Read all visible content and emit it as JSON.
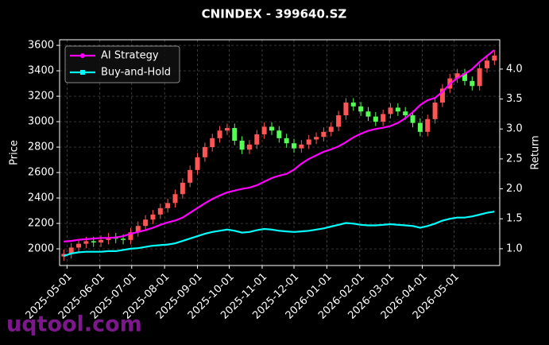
{
  "chart_data": {
    "type": "candlestick",
    "title": "CNINDEX - 399640.SZ",
    "ylabel": "Price",
    "y2label": "Return",
    "watermark": "uqtool.com",
    "grid": true,
    "legend": "upper left",
    "up_color": "#ff5555",
    "down_color": "#55ff55",
    "x": [
      "2025-04-28",
      "2025-05-05",
      "2025-05-12",
      "2025-05-19",
      "2025-05-26",
      "2025-06-02",
      "2025-06-09",
      "2025-06-16",
      "2025-06-23",
      "2025-06-30",
      "2025-07-07",
      "2025-07-14",
      "2025-07-21",
      "2025-07-28",
      "2025-08-04",
      "2025-08-11",
      "2025-08-18",
      "2025-08-25",
      "2025-09-01",
      "2025-09-08",
      "2025-09-15",
      "2025-09-22",
      "2025-09-29",
      "2025-10-06",
      "2025-10-13",
      "2025-10-20",
      "2025-10-27",
      "2025-11-03",
      "2025-11-10",
      "2025-11-17",
      "2025-11-24",
      "2025-12-01",
      "2025-12-08",
      "2025-12-15",
      "2025-12-22",
      "2025-12-29",
      "2026-01-05",
      "2026-01-12",
      "2026-01-19",
      "2026-01-26",
      "2026-02-02",
      "2026-02-09",
      "2026-02-16",
      "2026-02-23",
      "2026-03-02",
      "2026-03-09",
      "2026-03-16",
      "2026-03-23",
      "2026-03-30",
      "2026-04-06",
      "2026-04-13",
      "2026-04-20",
      "2026-04-27",
      "2026-05-04",
      "2026-05-11",
      "2026-05-18",
      "2026-05-25",
      "2026-06-01",
      "2026-06-08"
    ],
    "open": [
      1940,
      1960,
      2010,
      2040,
      2060,
      2050,
      2070,
      2090,
      2080,
      2070,
      2130,
      2180,
      2230,
      2270,
      2320,
      2360,
      2430,
      2520,
      2620,
      2720,
      2800,
      2870,
      2930,
      2950,
      2850,
      2780,
      2820,
      2900,
      2960,
      2930,
      2870,
      2830,
      2790,
      2820,
      2860,
      2880,
      2920,
      2960,
      3050,
      3150,
      3120,
      3080,
      3040,
      3000,
      3060,
      3110,
      3080,
      3050,
      2990,
      2920,
      3020,
      3150,
      3260,
      3340,
      3380,
      3320,
      3280,
      3420,
      3480
    ],
    "high": [
      1995,
      2045,
      2075,
      2095,
      2095,
      2105,
      2125,
      2125,
      2115,
      2165,
      2215,
      2265,
      2305,
      2355,
      2395,
      2465,
      2555,
      2655,
      2755,
      2835,
      2905,
      2965,
      2985,
      2985,
      2885,
      2855,
      2935,
      2995,
      2995,
      2965,
      2905,
      2865,
      2855,
      2895,
      2915,
      2955,
      2995,
      3085,
      3185,
      3185,
      3155,
      3115,
      3075,
      3095,
      3145,
      3145,
      3115,
      3085,
      3025,
      3055,
      3185,
      3295,
      3375,
      3415,
      3415,
      3355,
      3455,
      3515,
      3555
    ],
    "low": [
      1905,
      1925,
      1975,
      2005,
      2015,
      2015,
      2035,
      2045,
      2035,
      2035,
      2095,
      2145,
      2195,
      2235,
      2285,
      2325,
      2395,
      2485,
      2585,
      2685,
      2765,
      2835,
      2895,
      2815,
      2745,
      2745,
      2785,
      2865,
      2895,
      2835,
      2795,
      2755,
      2755,
      2785,
      2825,
      2845,
      2885,
      2925,
      3015,
      3085,
      3045,
      3005,
      2965,
      2965,
      3025,
      3045,
      3015,
      2955,
      2885,
      2885,
      2985,
      3115,
      3225,
      3305,
      3285,
      3245,
      3245,
      3385,
      3445
    ],
    "close": [
      1960,
      2010,
      2040,
      2060,
      2050,
      2070,
      2090,
      2080,
      2070,
      2130,
      2180,
      2230,
      2270,
      2320,
      2360,
      2430,
      2520,
      2620,
      2720,
      2800,
      2870,
      2930,
      2950,
      2850,
      2780,
      2820,
      2900,
      2960,
      2930,
      2870,
      2830,
      2790,
      2820,
      2860,
      2880,
      2920,
      2960,
      3050,
      3150,
      3120,
      3080,
      3040,
      3000,
      3060,
      3110,
      3080,
      3050,
      2990,
      2920,
      3020,
      3150,
      3260,
      3340,
      3380,
      3320,
      3280,
      3420,
      3480,
      3520
    ],
    "series": [
      {
        "name": "AI Strategy",
        "color": "#ff00ff",
        "axis": "y2",
        "marker": "circle",
        "values": [
          1.12,
          1.13,
          1.15,
          1.16,
          1.17,
          1.18,
          1.18,
          1.19,
          1.21,
          1.25,
          1.28,
          1.31,
          1.35,
          1.4,
          1.44,
          1.47,
          1.52,
          1.6,
          1.68,
          1.76,
          1.83,
          1.89,
          1.94,
          1.97,
          2.0,
          2.02,
          2.06,
          2.12,
          2.18,
          2.22,
          2.25,
          2.32,
          2.42,
          2.5,
          2.56,
          2.62,
          2.66,
          2.71,
          2.78,
          2.86,
          2.92,
          2.97,
          3.0,
          3.02,
          3.05,
          3.1,
          3.18,
          3.28,
          3.4,
          3.48,
          3.52,
          3.62,
          3.75,
          3.85,
          3.92,
          4.0,
          4.12,
          4.22,
          4.32
        ]
      },
      {
        "name": "Buy-and-Hold",
        "color": "#00ffff",
        "axis": "y2",
        "marker": "square",
        "values": [
          0.88,
          0.92,
          0.94,
          0.95,
          0.95,
          0.95,
          0.96,
          0.96,
          0.98,
          1.0,
          1.01,
          1.03,
          1.05,
          1.06,
          1.07,
          1.09,
          1.13,
          1.17,
          1.21,
          1.25,
          1.28,
          1.3,
          1.32,
          1.3,
          1.27,
          1.28,
          1.31,
          1.33,
          1.32,
          1.3,
          1.29,
          1.28,
          1.29,
          1.3,
          1.32,
          1.34,
          1.37,
          1.4,
          1.43,
          1.42,
          1.4,
          1.39,
          1.39,
          1.4,
          1.41,
          1.4,
          1.39,
          1.38,
          1.35,
          1.38,
          1.42,
          1.47,
          1.5,
          1.52,
          1.52,
          1.54,
          1.57,
          1.6,
          1.62
        ]
      }
    ],
    "xlim": [
      "2025-04-24",
      "2026-06-13"
    ],
    "xticks": [
      "2025-05-01",
      "2025-06-01",
      "2025-07-01",
      "2025-08-01",
      "2025-09-01",
      "2025-10-01",
      "2025-11-01",
      "2025-12-01",
      "2026-01-01",
      "2026-02-01",
      "2026-03-01",
      "2026-04-01",
      "2026-05-01"
    ],
    "ylim": [
      1869,
      3644
    ],
    "yticks": [
      2000,
      2200,
      2400,
      2600,
      2800,
      3000,
      3200,
      3400,
      3600
    ],
    "y2lim": [
      0.72,
      4.49
    ],
    "y2ticks": [
      {
        "value": 1,
        "label": "1.0"
      },
      1.5,
      {
        "value": 2,
        "label": "2.0"
      },
      2.5,
      {
        "value": 3,
        "label": "3.0"
      },
      3.5,
      {
        "value": 4,
        "label": "4.0"
      }
    ]
  }
}
